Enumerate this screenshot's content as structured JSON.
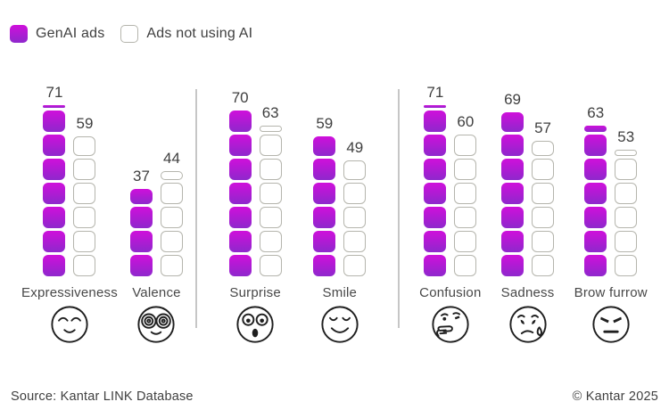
{
  "legend": {
    "items": [
      {
        "label": "GenAI ads",
        "swatch": "genai-filled"
      },
      {
        "label": "Ads not using AI",
        "swatch": "no-ai-outline"
      }
    ]
  },
  "footer": {
    "source": "Source: Kantar LINK Database",
    "copyright": "© Kantar 2025"
  },
  "colors": {
    "genai_top": "#cf0fdb",
    "genai_bottom": "#8e28cc",
    "outline_border": "#b5b5ad",
    "separator": "#c6c6c6",
    "text": "#3f3f3f"
  },
  "chart_data": {
    "type": "bar",
    "subtype": "stacked-block-pictogram",
    "title": "",
    "unit_per_block": 10,
    "ylim": [
      0,
      80
    ],
    "grid": false,
    "legend_position": "top-left",
    "categories": [
      "Expressiveness",
      "Valence",
      "Surprise",
      "Smile",
      "Confusion",
      "Sadness",
      "Brow furrow"
    ],
    "category_icons": [
      "relieved-face-icon",
      "spiral-glasses-face-icon",
      "surprised-face-icon",
      "smiling-face-icon",
      "thinking-face-icon",
      "sad-tear-face-icon",
      "angry-face-icon"
    ],
    "group_sizes": [
      2,
      2,
      3
    ],
    "series": [
      {
        "name": "GenAI ads",
        "style": "filled",
        "values": [
          71,
          37,
          70,
          59,
          71,
          69,
          63
        ]
      },
      {
        "name": "Ads not using AI",
        "style": "outline",
        "values": [
          59,
          44,
          63,
          49,
          60,
          57,
          53
        ]
      }
    ]
  }
}
